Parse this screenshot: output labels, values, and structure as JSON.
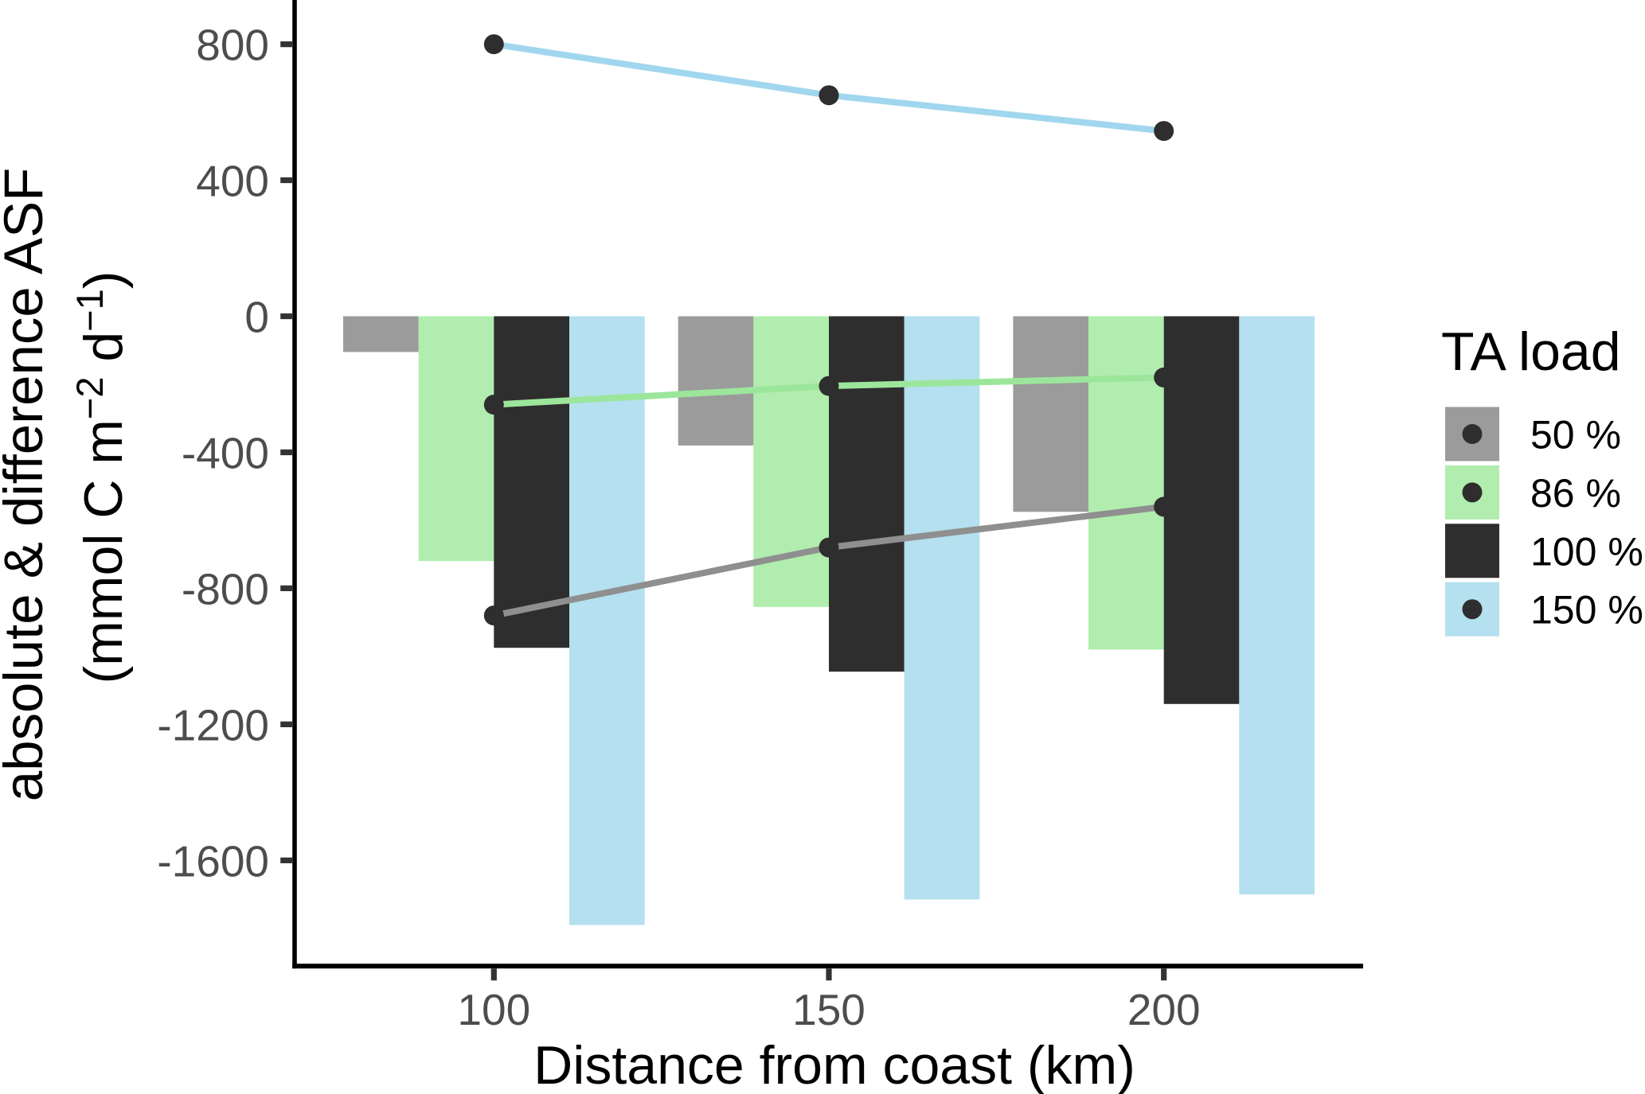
{
  "chart_data": {
    "type": "bar+line",
    "title": "",
    "xlabel": "Distance from coast (km)",
    "ylabel_line1": "absolute & difference ASF",
    "ylabel_line2_segments": [
      {
        "t": "(mmol C m"
      },
      {
        "t": "−2",
        "sup": true
      },
      {
        "t": " d"
      },
      {
        "t": "−1",
        "sup": true
      },
      {
        "t": ")"
      }
    ],
    "x": [
      100,
      150,
      200
    ],
    "x_tick_labels": [
      "100",
      "150",
      "200"
    ],
    "y_tick_values": [
      800,
      400,
      0,
      -400,
      -800,
      -1200,
      -1600
    ],
    "y_tick_labels": [
      "800",
      "400",
      "0",
      "-400",
      "-800",
      "-1200",
      "-1600"
    ],
    "xlim": [
      70.25,
      229.75
    ],
    "ylim": [
      -1911,
      930
    ],
    "grid": false,
    "legend_position": "right",
    "bar_width_x": 11.25,
    "bar_series": [
      {
        "name": "50 %",
        "color": "#9B9B9B",
        "values": [
          -105,
          -380,
          -575
        ]
      },
      {
        "name": "86 %",
        "color": "#B1EDAE",
        "values": [
          -720,
          -855,
          -980
        ]
      },
      {
        "name": "100 %",
        "color": "#2E2E2E",
        "values": [
          -975,
          -1045,
          -1140
        ]
      },
      {
        "name": "150 %",
        "color": "#B4E0EF",
        "values": [
          -1790,
          -1715,
          -1700
        ]
      }
    ],
    "line_series": [
      {
        "name": "50 %",
        "color": "#8F8F8F",
        "values": [
          -880,
          -680,
          -560
        ]
      },
      {
        "name": "86 %",
        "color": "#9CE69C",
        "values": [
          -260,
          -205,
          -180
        ]
      },
      {
        "name": "150 %",
        "color": "#A1D7EE",
        "values": [
          800,
          650,
          545
        ]
      }
    ],
    "point_color": "#2E2E2E",
    "legend": {
      "title": "TA load",
      "items": [
        {
          "label": "50 %",
          "color": "#9B9B9B",
          "dot": true
        },
        {
          "label": "86 %",
          "color": "#B1EDAE",
          "dot": true
        },
        {
          "label": "100 %",
          "color": "#2E2E2E",
          "dot": true
        },
        {
          "label": "150 %",
          "color": "#B4E0EF",
          "dot": true
        }
      ]
    },
    "colors": {
      "axis_line": "#000000",
      "tick_mark": "#333333",
      "tick_label": "#4D4D4D",
      "axis_title": "#000000",
      "legend_text": "#000000",
      "background": "#ffffff"
    }
  }
}
